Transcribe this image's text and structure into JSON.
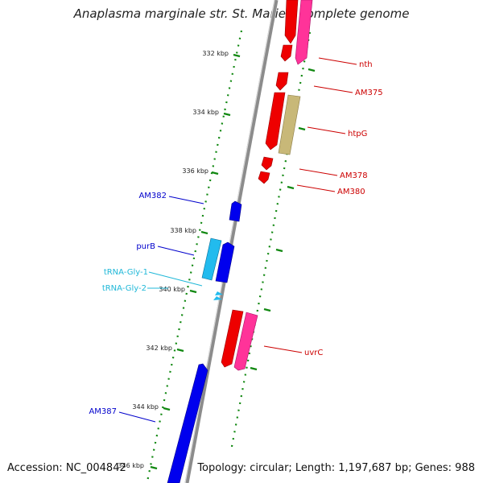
{
  "title": "Anaplasma marginale str. St. Maries, complete genome",
  "footer": {
    "accession": "Accession: NC_004842",
    "stats": "Topology: circular; Length: 1,197,687 bp; Genes: 988"
  },
  "scale": {
    "tick_labels": [
      "332 kbp",
      "334 kbp",
      "336 kbp",
      "338 kbp",
      "340 kbp",
      "342 kbp",
      "344 kbp",
      "346 kbp"
    ]
  },
  "features": {
    "reverse_labels": [
      {
        "name": "AM382",
        "color": "#0000cc"
      },
      {
        "name": "purB",
        "color": "#0000cc"
      },
      {
        "name": "tRNA-Gly-1",
        "color": "#20b8d8"
      },
      {
        "name": "tRNA-Gly-2",
        "color": "#20b8d8"
      },
      {
        "name": "AM387",
        "color": "#0000cc"
      }
    ],
    "forward_labels": [
      {
        "name": "nth",
        "color": "#cc0000"
      },
      {
        "name": "AM375",
        "color": "#cc0000"
      },
      {
        "name": "htpG",
        "color": "#cc0000"
      },
      {
        "name": "AM378",
        "color": "#cc0000"
      },
      {
        "name": "AM380",
        "color": "#cc0000"
      },
      {
        "name": "uvrC",
        "color": "#cc0000"
      }
    ]
  },
  "colors": {
    "backbone": "#8c8c8c",
    "cds_forward": "#ee0000",
    "cds_reverse": "#0000ee",
    "trna": "#22bbee",
    "feature_pink": "#ff3399",
    "feature_khaki": "#c8b878",
    "tick_mark": "#118811"
  }
}
